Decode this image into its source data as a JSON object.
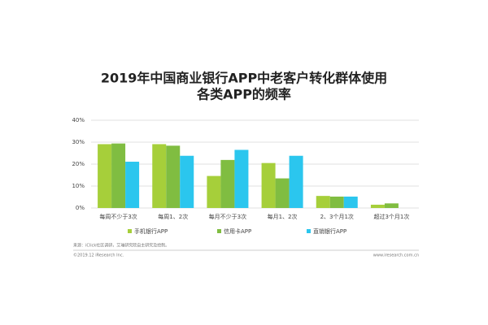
{
  "chart_data": {
    "type": "bar",
    "title": [
      "2019年中国商业银行APP中老客户转化群体使用",
      "各类APP的频率"
    ],
    "categories": [
      "每周不少于3次",
      "每周1、2次",
      "每月不少于3次",
      "每月1、2次",
      "2、3个月1次",
      "超过3个月1次"
    ],
    "series": [
      {
        "name": "手机银行APP",
        "color": "#a6cf3a",
        "values": [
          29.1,
          29.1,
          14.6,
          20.5,
          5.5,
          1.5
        ]
      },
      {
        "name": "信用卡APP",
        "color": "#80bd41",
        "values": [
          29.4,
          28.4,
          21.9,
          13.5,
          5.2,
          2.1
        ]
      },
      {
        "name": "直销银行APP",
        "color": "#2bc6ee",
        "values": [
          21.1,
          23.8,
          26.5,
          23.8,
          5.2,
          null
        ]
      }
    ],
    "ylim": [
      0,
      40
    ],
    "yticks": [
      {
        "value": 0,
        "label": "0%"
      },
      {
        "value": 10,
        "label": "10%"
      },
      {
        "value": 20,
        "label": "20%"
      },
      {
        "value": 30,
        "label": "30%"
      },
      {
        "value": 40,
        "label": "40%"
      }
    ],
    "grid": true,
    "source": "来源：iClick社区调研，艾瑞研究院自主研究及绘制。",
    "copyright": "©2019.12 iResearch Inc.",
    "website": "www.iresearch.com.cn"
  }
}
